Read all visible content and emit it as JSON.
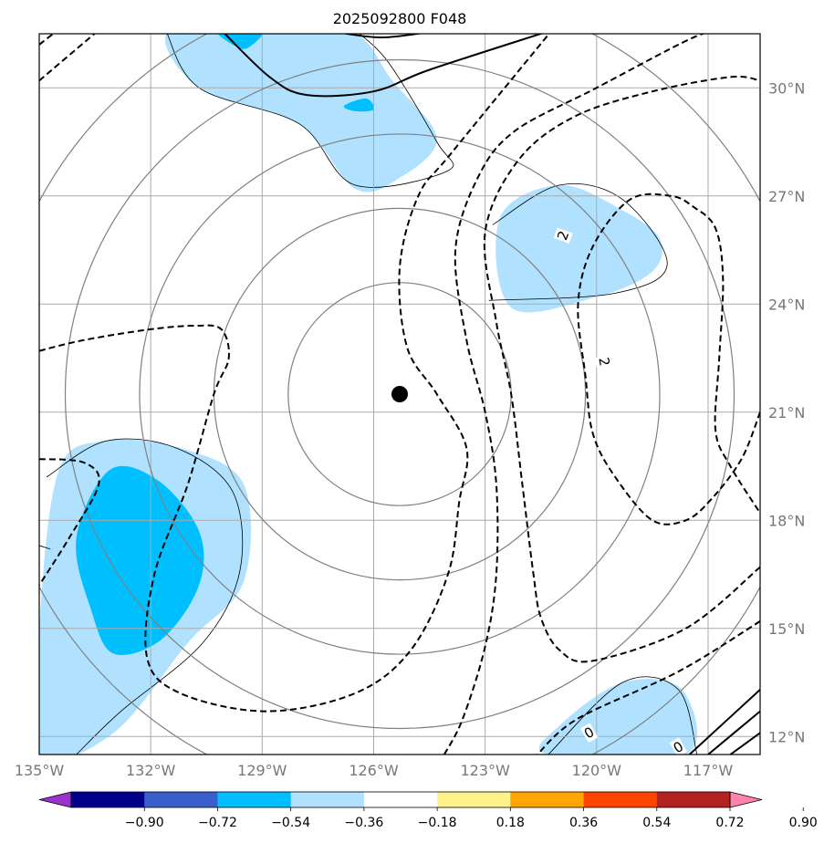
{
  "chart_data": {
    "type": "map",
    "title": "2025092800 F048",
    "extent": {
      "lon": [
        -135,
        -115.6
      ],
      "lat": [
        11.5,
        31.5
      ]
    },
    "lon_ticks": [
      -135,
      -132,
      -129,
      -126,
      -123,
      -120,
      -117
    ],
    "lon_tick_labels": [
      "135°W",
      "132°W",
      "129°W",
      "126°W",
      "123°W",
      "120°W",
      "117°W"
    ],
    "lat_ticks": [
      12,
      15,
      18,
      21,
      24,
      27,
      30
    ],
    "lat_tick_labels": [
      "12°N",
      "15°N",
      "18°N",
      "21°N",
      "24°N",
      "27°N",
      "30°N"
    ],
    "grid": true,
    "center_marker": {
      "lon": -125.3,
      "lat": 21.5
    },
    "range_rings_deg": [
      3,
      5,
      7,
      9,
      11
    ],
    "range_ring_color": "#808080",
    "colorbar": {
      "levels": [
        "−0.90",
        "−0.72",
        "−0.54",
        "−0.36",
        "−0.18",
        "0.18",
        "0.36",
        "0.54",
        "0.72",
        "0.90"
      ],
      "colors": [
        "#9a32cd",
        "#00008b",
        "#3a5fcd",
        "#00bfff",
        "#b0e2ff",
        "#ffffff",
        "#fff08a",
        "#ffa500",
        "#ff4500",
        "#b22222",
        "#ff82ab"
      ],
      "extend": "both"
    },
    "shading": [
      {
        "value_band": [
          -0.36,
          -0.18
        ],
        "color": "#b0e2ff",
        "polygon": [
          [
            -131.5,
            31.6
          ],
          [
            -128.5,
            31.6
          ],
          [
            -126.5,
            31.5
          ],
          [
            -125.5,
            30.2
          ],
          [
            -124.3,
            28.6
          ],
          [
            -125.3,
            27.5
          ],
          [
            -126.5,
            27.2
          ],
          [
            -128,
            29
          ],
          [
            -130.7,
            30
          ]
        ]
      },
      {
        "value_band": [
          -0.54,
          -0.36
        ],
        "color": "#00bfff",
        "polygon": [
          [
            -130.2,
            31.6
          ],
          [
            -129,
            31.6
          ],
          [
            -129.4,
            31.1
          ],
          [
            -129.8,
            31.2
          ]
        ]
      },
      {
        "value_band": [
          -0.54,
          -0.36
        ],
        "color": "#00bfff",
        "polygon": [
          [
            -126.8,
            29.5
          ],
          [
            -126.2,
            29.7
          ],
          [
            -126,
            29.4
          ],
          [
            -126.5,
            29.35
          ]
        ]
      },
      {
        "value_band": [
          -0.36,
          -0.18
        ],
        "color": "#b0e2ff",
        "polygon": [
          [
            -122.6,
            26.4
          ],
          [
            -121,
            27.3
          ],
          [
            -119.3,
            26.6
          ],
          [
            -118.3,
            25.8
          ],
          [
            -118.5,
            24.9
          ],
          [
            -120,
            24.2
          ],
          [
            -122.3,
            23.9
          ]
        ]
      },
      {
        "value_band": [
          -0.36,
          -0.18
        ],
        "color": "#b0e2ff",
        "polygon": [
          [
            -134.5,
            19.3
          ],
          [
            -133.3,
            20.2
          ],
          [
            -131.2,
            20
          ],
          [
            -129.5,
            19
          ],
          [
            -129.5,
            16.3
          ],
          [
            -131,
            14.6
          ],
          [
            -133,
            12.1
          ],
          [
            -135,
            11.5
          ],
          [
            -135,
            15
          ]
        ]
      },
      {
        "value_band": [
          -0.54,
          -0.36
        ],
        "color": "#00bfff",
        "polygon": [
          [
            -133.1,
            19.4
          ],
          [
            -131.8,
            19.1
          ],
          [
            -130.7,
            17.7
          ],
          [
            -130.7,
            16.2
          ],
          [
            -131.7,
            14.7
          ],
          [
            -133,
            14.3
          ],
          [
            -133.6,
            15.5
          ],
          [
            -134,
            17.5
          ]
        ]
      },
      {
        "value_band": [
          -0.36,
          -0.18
        ],
        "color": "#b0e2ff",
        "polygon": [
          [
            -121.3,
            11.5
          ],
          [
            -121,
            12.3
          ],
          [
            -119.3,
            13.5
          ],
          [
            -117.7,
            13.3
          ],
          [
            -117.6,
            11.5
          ]
        ]
      }
    ],
    "contours": [
      {
        "style": "solid",
        "width": 2,
        "points": [
          [
            -130.1,
            31.6
          ],
          [
            -128.8,
            30.3
          ],
          [
            -127.8,
            29.8
          ],
          [
            -126,
            29.9
          ],
          [
            -124.5,
            30.5
          ],
          [
            -121.2,
            31.6
          ]
        ]
      },
      {
        "style": "solid",
        "width": 2,
        "points": [
          [
            -127.3,
            31.6
          ],
          [
            -125.8,
            31.4
          ],
          [
            -124.2,
            31.6
          ]
        ]
      },
      {
        "style": "solid",
        "width": 2,
        "points": [
          [
            -117.5,
            11.5
          ],
          [
            -115.6,
            13.3
          ]
        ]
      },
      {
        "style": "solid",
        "width": 2,
        "points": [
          [
            -117,
            11.5
          ],
          [
            -115.6,
            12.7
          ]
        ]
      },
      {
        "style": "solid",
        "width": 2,
        "points": [
          [
            -116.4,
            11.5
          ],
          [
            -115.6,
            12.1
          ]
        ]
      },
      {
        "style": "dashed",
        "width": 2,
        "points": [
          [
            -135,
            30.2
          ],
          [
            -133.4,
            31.6
          ]
        ]
      },
      {
        "style": "dashed",
        "width": 2,
        "points": [
          [
            -135,
            31.2
          ],
          [
            -134.5,
            31.6
          ]
        ]
      },
      {
        "style": "dashed",
        "width": 2,
        "points": [
          [
            -135,
            22.7
          ],
          [
            -133.8,
            23
          ],
          [
            -132,
            23.3
          ],
          [
            -130.8,
            23.4
          ],
          [
            -130.1,
            23.3
          ],
          [
            -129.9,
            22.5
          ],
          [
            -130.3,
            21.5
          ],
          [
            -131,
            19
          ],
          [
            -131.9,
            16.5
          ],
          [
            -132.1,
            14.2
          ],
          [
            -131.2,
            13.2
          ],
          [
            -128.9,
            12.7
          ],
          [
            -126.5,
            13.2
          ],
          [
            -125,
            14.4
          ],
          [
            -124,
            16.5
          ],
          [
            -123.7,
            18.5
          ],
          [
            -123.5,
            20
          ],
          [
            -124.3,
            21.5
          ],
          [
            -125.1,
            22.8
          ],
          [
            -125.3,
            25
          ],
          [
            -124.8,
            27
          ],
          [
            -123.9,
            28.2
          ],
          [
            -121.2,
            31.6
          ]
        ]
      },
      {
        "style": "dashed",
        "width": 2,
        "points": [
          [
            -135,
            19.7
          ],
          [
            -133.8,
            19.6
          ],
          [
            -133.4,
            19
          ],
          [
            -134.2,
            17.5
          ],
          [
            -135,
            16.2
          ]
        ]
      },
      {
        "style": "dashed",
        "width": 2,
        "points": [
          [
            -124.1,
            11.5
          ],
          [
            -123.6,
            12.5
          ],
          [
            -123,
            14.5
          ],
          [
            -122.7,
            16.5
          ],
          [
            -122.7,
            19
          ],
          [
            -123,
            21
          ],
          [
            -123.5,
            23
          ],
          [
            -123.8,
            25.5
          ],
          [
            -123.2,
            27.5
          ],
          [
            -122.2,
            28.8
          ],
          [
            -120,
            30
          ],
          [
            -117.6,
            31.3
          ],
          [
            -116.8,
            31.6
          ]
        ]
      },
      {
        "style": "dashed",
        "width": 2,
        "points": [
          [
            -115.6,
            15.2
          ],
          [
            -117.8,
            13.8
          ],
          [
            -120.5,
            12.5
          ],
          [
            -121.6,
            11.5
          ]
        ]
      },
      {
        "style": "dashed",
        "width": 2,
        "points": [
          [
            -115.6,
            16.7
          ],
          [
            -117.6,
            15
          ],
          [
            -120.1,
            14.1
          ],
          [
            -121,
            14.4
          ],
          [
            -121.5,
            15.3
          ],
          [
            -121.7,
            16.5
          ],
          [
            -122,
            19
          ],
          [
            -122.3,
            21.5
          ],
          [
            -122.7,
            23.5
          ],
          [
            -123,
            26
          ],
          [
            -122.1,
            28
          ],
          [
            -120.6,
            29.2
          ],
          [
            -118.5,
            29.9
          ],
          [
            -116.4,
            30.3
          ],
          [
            -115.6,
            30.2
          ]
        ]
      },
      {
        "style": "dashed",
        "width": 2,
        "points": [
          [
            -115.6,
            21
          ],
          [
            -116.1,
            19.7
          ],
          [
            -116.9,
            18.6
          ],
          [
            -117.6,
            18
          ],
          [
            -118.5,
            18
          ],
          [
            -119.5,
            19.2
          ],
          [
            -120.1,
            20.4
          ],
          [
            -120.3,
            22
          ],
          [
            -120.5,
            24
          ],
          [
            -120.1,
            25.6
          ],
          [
            -119.1,
            26.9
          ],
          [
            -118,
            27
          ],
          [
            -117.4,
            26.7
          ],
          [
            -116.8,
            26.1
          ],
          [
            -116.6,
            24.7
          ],
          [
            -116.7,
            22.5
          ],
          [
            -116.8,
            20.5
          ],
          [
            -116.4,
            19.5
          ],
          [
            -115.6,
            18.2
          ]
        ]
      }
    ],
    "thin_outlines": [
      [
        [
          -131.6,
          31.6
        ],
        [
          -130.7,
          30
        ],
        [
          -128,
          29
        ],
        [
          -126.5,
          27.3
        ],
        [
          -124,
          27.7
        ],
        [
          -124.3,
          28.5
        ],
        [
          -125.6,
          30.7
        ],
        [
          -126.5,
          31.6
        ]
      ],
      [
        [
          -122.8,
          26.2
        ],
        [
          -121,
          27.3
        ],
        [
          -119.3,
          26.9
        ],
        [
          -118.1,
          25.1
        ],
        [
          -119.5,
          24.3
        ],
        [
          -122.9,
          24.1
        ]
      ],
      [
        [
          -134.8,
          19.2
        ],
        [
          -133.2,
          20.2
        ],
        [
          -131.3,
          20
        ],
        [
          -129.8,
          18.8
        ],
        [
          -129.6,
          16.6
        ],
        [
          -130.6,
          14.6
        ],
        [
          -132.8,
          12.7
        ],
        [
          -134,
          11.5
        ]
      ],
      [
        [
          -135,
          17.3
        ],
        [
          -134.7,
          17.2
        ]
      ],
      [
        [
          -121.3,
          11.5
        ],
        [
          -119.3,
          13.5
        ],
        [
          -117.8,
          13.3
        ],
        [
          -117.3,
          11.5
        ]
      ]
    ],
    "contour_labels": [
      {
        "text": "2",
        "lon": -120.9,
        "lat": 25.9,
        "rotate": -70
      },
      {
        "text": "2",
        "lon": -119.8,
        "lat": 22.4,
        "rotate": 80
      },
      {
        "text": "0",
        "lon": -120.2,
        "lat": 12.1,
        "rotate": -30
      },
      {
        "text": "0",
        "lon": -117.8,
        "lat": 11.7,
        "rotate": -30
      }
    ]
  }
}
